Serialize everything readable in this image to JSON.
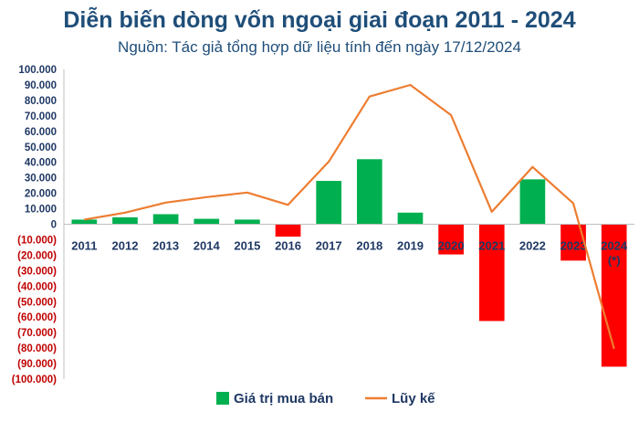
{
  "chart_data": {
    "type": "bar",
    "title": "Diễn biến dòng vốn ngoại giai đoạn 2011 - 2024",
    "subtitle": "Nguồn: Tác giả tổng hợp dữ liệu tính đến ngày 17/12/2024",
    "categories": [
      "2011",
      "2012",
      "2013",
      "2014",
      "2015",
      "2016",
      "2017",
      "2018",
      "2019",
      "2020",
      "2021",
      "2022",
      "2023",
      "2024\n(*)"
    ],
    "series": [
      {
        "name": "Giá trị mua bán",
        "type": "bar",
        "values": [
          3000,
          4500,
          6500,
          3500,
          3000,
          -8000,
          28000,
          42000,
          7500,
          -19500,
          -62500,
          29000,
          -23500,
          -92000
        ],
        "color_positive": "#00b050",
        "color_negative": "#ff0000"
      },
      {
        "name": "Lũy kế",
        "type": "line",
        "values": [
          3000,
          7500,
          14000,
          17500,
          20500,
          12500,
          40500,
          82500,
          90000,
          70500,
          8000,
          37000,
          13500,
          -80500
        ],
        "color": "#ed7d31"
      }
    ],
    "yticks": [
      "100.000",
      "90.000",
      "80.000",
      "70.000",
      "60.000",
      "50.000",
      "40.000",
      "30.000",
      "20.000",
      "10.000",
      "0",
      "(10.000)",
      "(20.000)",
      "(30.000)",
      "(40.000)",
      "(50.000)",
      "(60.000)",
      "(70.000)",
      "(80.000)",
      "(90.000)",
      "(100.000)"
    ],
    "ylim": [
      -100000,
      100000
    ],
    "grid": false,
    "legend_position": "bottom"
  }
}
